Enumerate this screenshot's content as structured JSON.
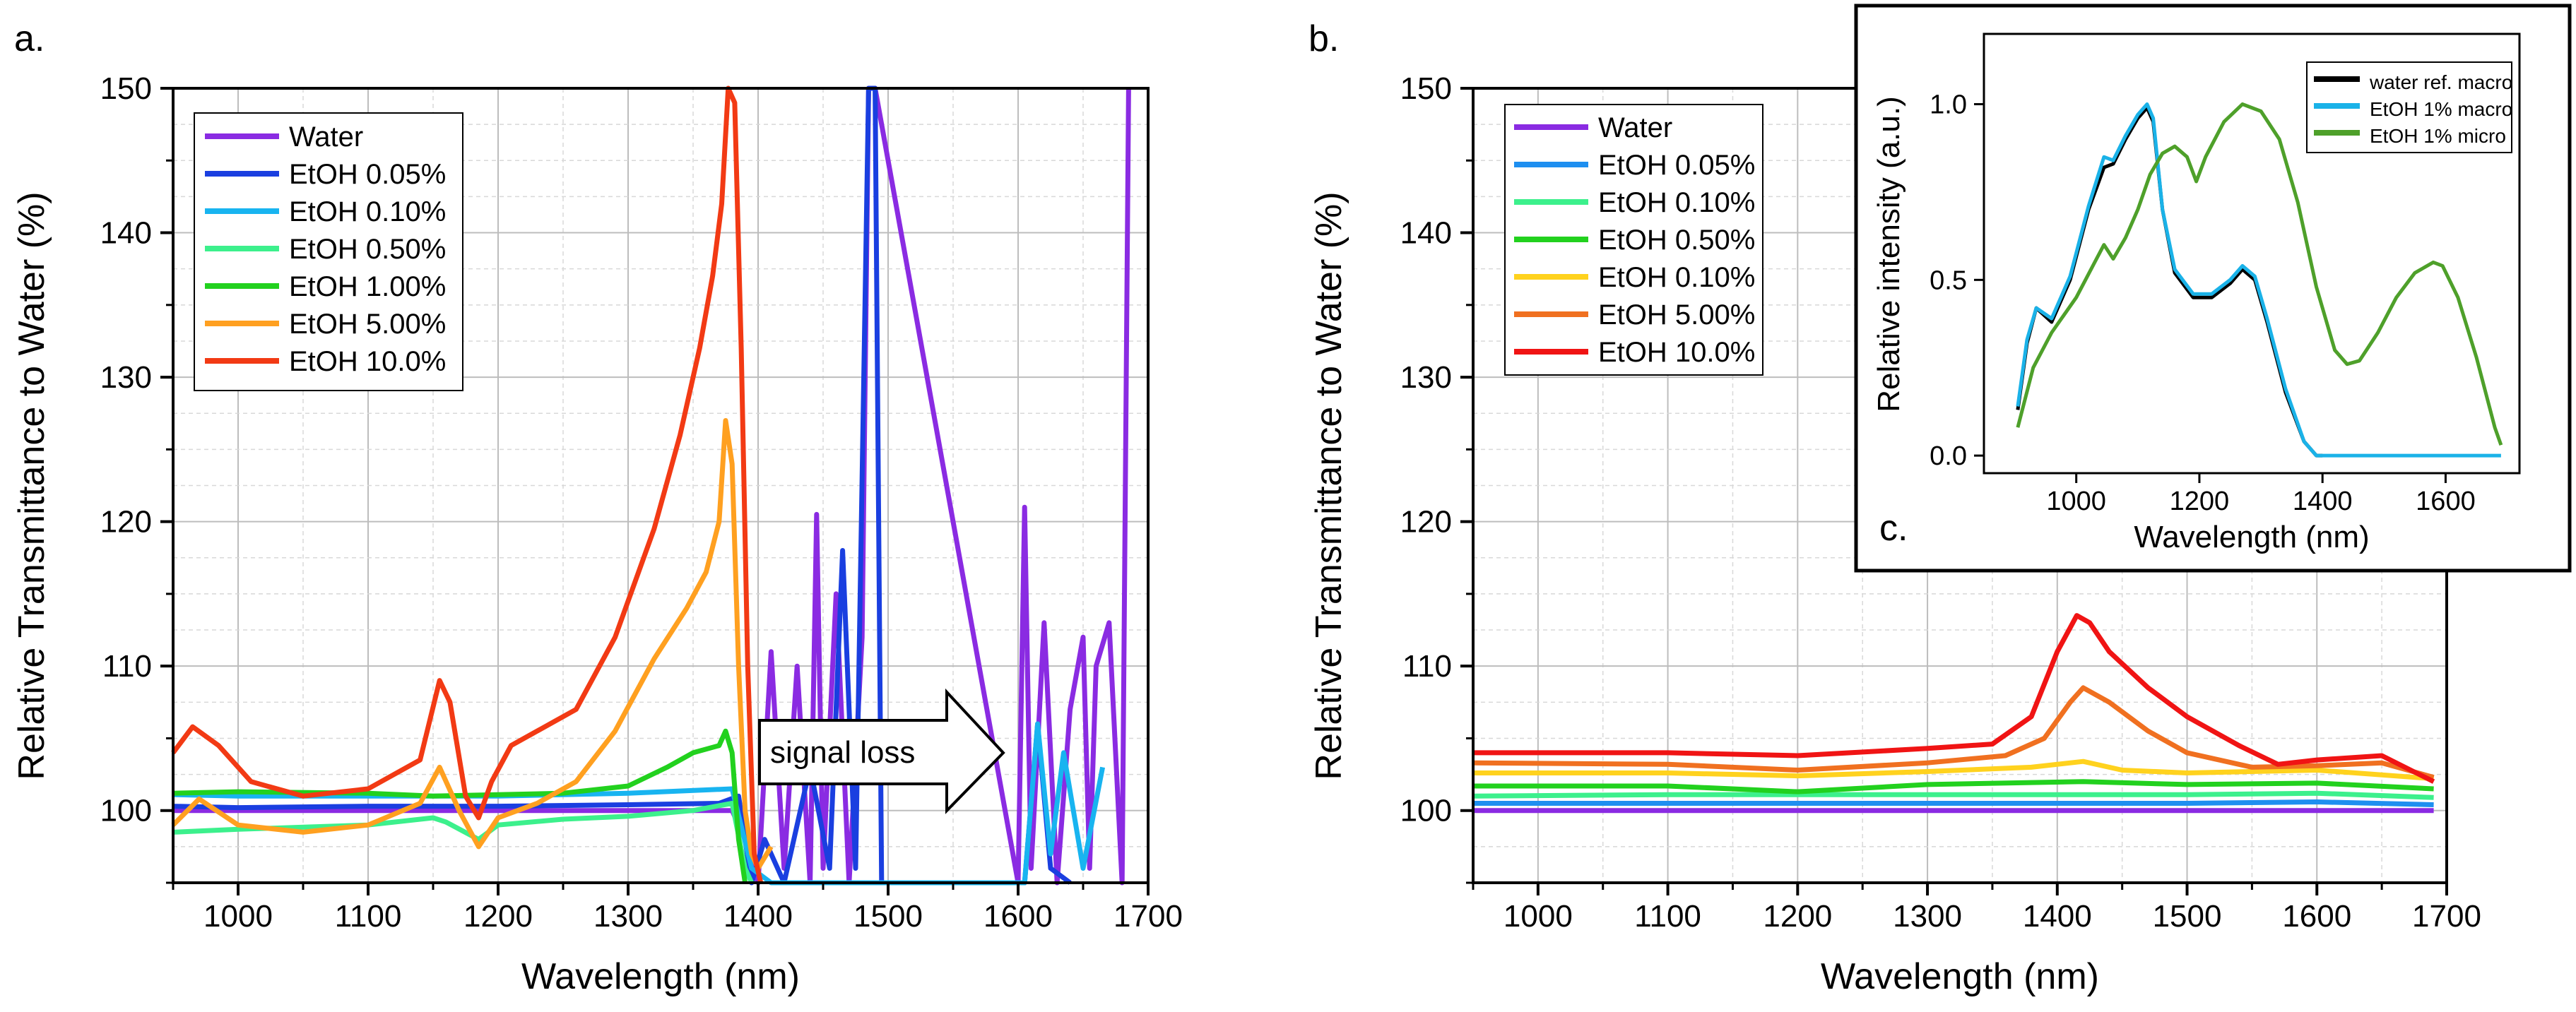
{
  "panels": [
    {
      "label": "a.",
      "xlabel": "Wavelength (nm)",
      "ylabel": "Relative Transmittance to Water (%)",
      "xlim": [
        950,
        1700
      ],
      "ylim": [
        95,
        150
      ],
      "xticks": [
        1000,
        1100,
        1200,
        1300,
        1400,
        1500,
        1600,
        1700
      ],
      "yticks": [
        100,
        110,
        120,
        130,
        140,
        150
      ],
      "annotation": "signal loss"
    },
    {
      "label": "b.",
      "xlabel": "Wavelength (nm)",
      "ylabel": "Relative Transmittance to Water (%)",
      "xlim": [
        950,
        1700
      ],
      "ylim": [
        95,
        150
      ],
      "xticks": [
        1000,
        1100,
        1200,
        1300,
        1400,
        1500,
        1600,
        1700
      ],
      "yticks": [
        100,
        110,
        120,
        130,
        140,
        150
      ]
    },
    {
      "label": "c.",
      "xlabel": "Wavelength (nm)",
      "ylabel": "Relative intensity (a.u.)",
      "xlim": [
        850,
        1720
      ],
      "ylim": [
        -0.05,
        1.2
      ],
      "xticks": [
        1000,
        1200,
        1400,
        1600
      ],
      "yticks": [
        "0.0",
        "0.5",
        "1.0"
      ],
      "ytick_values": [
        0,
        0.5,
        1.0
      ]
    }
  ],
  "chart_data": [
    {
      "type": "line",
      "title": "a.",
      "xlabel": "Wavelength (nm)",
      "ylabel": "Relative Transmittance to Water (%)",
      "xlim": [
        950,
        1700
      ],
      "ylim": [
        95,
        150
      ],
      "grid": true,
      "legend_position": "top-left",
      "series": [
        {
          "name": "Water",
          "color": "#8a2be2",
          "x": [
            950,
            1000,
            1100,
            1200,
            1300,
            1370,
            1380,
            1390,
            1400,
            1410,
            1420,
            1430,
            1440,
            1445,
            1450,
            1460,
            1470,
            1480,
            1485,
            1490,
            1600,
            1605,
            1610,
            1620,
            1630,
            1640,
            1650,
            1655,
            1660,
            1670,
            1680,
            1685
          ],
          "y": [
            100,
            100,
            100,
            100,
            100,
            100,
            100,
            98,
            95,
            111,
            96,
            110,
            95,
            120.5,
            96,
            115,
            95,
            112,
            150,
            150,
            95,
            121,
            96,
            113,
            95,
            107,
            112,
            96,
            110,
            113,
            95,
            150
          ]
        },
        {
          "name": "EtOH 0.05%",
          "color": "#1a3fe0",
          "x": [
            950,
            1000,
            1100,
            1200,
            1300,
            1370,
            1385,
            1395,
            1405,
            1420,
            1440,
            1455,
            1465,
            1475,
            1485,
            1490,
            1495,
            1605,
            1615,
            1625,
            1640
          ],
          "y": [
            100.3,
            100.2,
            100.3,
            100.3,
            100.4,
            100.5,
            101,
            95,
            98,
            95,
            103,
            96,
            118,
            96,
            150,
            150,
            95,
            95,
            106,
            96,
            95
          ]
        },
        {
          "name": "EtOH 0.10%",
          "color": "#18b4f0",
          "x": [
            950,
            1000,
            1100,
            1200,
            1300,
            1380,
            1395,
            1410,
            1430,
            1605,
            1615,
            1625,
            1635,
            1650,
            1665
          ],
          "y": [
            101.1,
            101.0,
            101.0,
            101.0,
            101.2,
            101.5,
            96,
            95,
            95,
            95,
            106,
            97,
            104,
            96,
            103
          ]
        },
        {
          "name": "EtOH 0.50%",
          "color": "#3cf08c",
          "x": [
            950,
            1000,
            1100,
            1150,
            1160,
            1185,
            1200,
            1250,
            1300,
            1350,
            1380,
            1390,
            1395
          ],
          "y": [
            98.5,
            98.7,
            99.0,
            99.5,
            99.2,
            98.0,
            99.0,
            99.4,
            99.6,
            100.0,
            100.5,
            96,
            95
          ]
        },
        {
          "name": "EtOH 1.00%",
          "color": "#22d11e",
          "x": [
            950,
            1000,
            1100,
            1150,
            1200,
            1250,
            1300,
            1330,
            1350,
            1370,
            1375,
            1380,
            1385,
            1390
          ],
          "y": [
            101.2,
            101.3,
            101.2,
            101.0,
            101.1,
            101.2,
            101.7,
            103.0,
            104.0,
            104.5,
            105.5,
            104,
            98,
            95
          ]
        },
        {
          "name": "EtOH 5.00%",
          "color": "#ffa020",
          "x": [
            950,
            970,
            1000,
            1050,
            1100,
            1140,
            1155,
            1170,
            1185,
            1200,
            1230,
            1260,
            1290,
            1320,
            1345,
            1360,
            1370,
            1375,
            1380,
            1385,
            1390,
            1395,
            1400,
            1410
          ],
          "y": [
            99,
            100.8,
            99.0,
            98.5,
            99.0,
            100.5,
            103.0,
            100.0,
            97.5,
            99.5,
            100.5,
            102.0,
            105.5,
            110.5,
            114.0,
            116.5,
            120.0,
            127.0,
            124.0,
            110.0,
            100.0,
            97.0,
            96.0,
            97.5
          ]
        },
        {
          "name": "EtOH 10.0%",
          "color": "#f23a14",
          "x": [
            950,
            965,
            985,
            1010,
            1050,
            1100,
            1140,
            1155,
            1163,
            1175,
            1185,
            1195,
            1210,
            1230,
            1260,
            1290,
            1320,
            1340,
            1355,
            1365,
            1372,
            1377,
            1382,
            1387,
            1392,
            1397,
            1402
          ],
          "y": [
            104,
            105.8,
            104.5,
            102,
            101,
            101.5,
            103.5,
            109.0,
            107.5,
            101.0,
            99.5,
            102.0,
            104.5,
            105.5,
            107.0,
            112.0,
            119.5,
            126.0,
            132.0,
            137.0,
            142.0,
            150.0,
            149.0,
            132.0,
            110.0,
            97.0,
            95.0
          ]
        }
      ]
    },
    {
      "type": "line",
      "title": "b.",
      "xlabel": "Wavelength (nm)",
      "ylabel": "Relative Transmittance to Water (%)",
      "xlim": [
        950,
        1700
      ],
      "ylim": [
        95,
        150
      ],
      "grid": true,
      "legend_position": "top-left",
      "series": [
        {
          "name": "Water",
          "color": "#8a2be2",
          "x": [
            950,
            1100,
            1300,
            1500,
            1600,
            1690
          ],
          "y": [
            100.0,
            100.0,
            100.0,
            100.0,
            100.0,
            100.0
          ]
        },
        {
          "name": "EtOH 0.05%",
          "color": "#1e8ff0",
          "x": [
            950,
            1100,
            1300,
            1500,
            1600,
            1690
          ],
          "y": [
            100.5,
            100.5,
            100.5,
            100.5,
            100.6,
            100.4
          ]
        },
        {
          "name": "EtOH 0.10%",
          "color": "#3cf08c",
          "x": [
            950,
            1100,
            1300,
            1500,
            1600,
            1690
          ],
          "y": [
            101.0,
            101.1,
            101.1,
            101.1,
            101.2,
            100.9
          ]
        },
        {
          "name": "EtOH 0.50%",
          "color": "#22d11e",
          "x": [
            950,
            1100,
            1200,
            1300,
            1420,
            1500,
            1600,
            1690
          ],
          "y": [
            101.7,
            101.7,
            101.3,
            101.8,
            102.0,
            101.8,
            101.9,
            101.5
          ]
        },
        {
          "name": "EtOH 0.10%",
          "color": "#ffd21e",
          "x": [
            950,
            1100,
            1200,
            1300,
            1380,
            1420,
            1450,
            1500,
            1600,
            1690
          ],
          "y": [
            102.6,
            102.6,
            102.4,
            102.7,
            103.0,
            103.4,
            102.8,
            102.6,
            102.8,
            102.2
          ]
        },
        {
          "name": "EtOH 5.00%",
          "color": "#f07020",
          "x": [
            950,
            1100,
            1200,
            1300,
            1360,
            1390,
            1410,
            1420,
            1440,
            1470,
            1500,
            1550,
            1600,
            1650,
            1690
          ],
          "y": [
            103.3,
            103.2,
            102.8,
            103.3,
            103.8,
            105.0,
            107.5,
            108.5,
            107.5,
            105.5,
            104.0,
            103.0,
            103.1,
            103.3,
            102.3
          ]
        },
        {
          "name": "EtOH 10.0%",
          "color": "#f01414",
          "x": [
            950,
            1100,
            1200,
            1300,
            1350,
            1380,
            1400,
            1415,
            1425,
            1440,
            1470,
            1500,
            1540,
            1570,
            1600,
            1650,
            1690
          ],
          "y": [
            104.0,
            104.0,
            103.8,
            104.3,
            104.6,
            106.5,
            111.0,
            113.5,
            113.0,
            111.0,
            108.5,
            106.5,
            104.5,
            103.2,
            103.5,
            103.8,
            102.0
          ]
        }
      ]
    },
    {
      "type": "line",
      "title": "c.",
      "xlabel": "Wavelength (nm)",
      "ylabel": "Relative intensity (a.u.)",
      "xlim": [
        850,
        1720
      ],
      "ylim": [
        -0.05,
        1.2
      ],
      "grid": false,
      "legend_position": "top-right",
      "series": [
        {
          "name": "water ref. macro",
          "color": "#000000",
          "x": [
            905,
            920,
            935,
            960,
            990,
            1020,
            1045,
            1060,
            1080,
            1100,
            1115,
            1125,
            1140,
            1160,
            1190,
            1220,
            1250,
            1270,
            1290,
            1310,
            1340,
            1370,
            1390,
            1400
          ],
          "y": [
            0.13,
            0.32,
            0.42,
            0.38,
            0.5,
            0.7,
            0.82,
            0.83,
            0.9,
            0.96,
            0.99,
            0.95,
            0.7,
            0.52,
            0.45,
            0.45,
            0.49,
            0.53,
            0.5,
            0.38,
            0.18,
            0.04,
            0.0,
            0.0
          ]
        },
        {
          "name": "EtOH 1% macro",
          "color": "#1ab2e8",
          "x": [
            905,
            920,
            935,
            960,
            990,
            1020,
            1045,
            1060,
            1080,
            1100,
            1115,
            1125,
            1140,
            1160,
            1190,
            1220,
            1250,
            1270,
            1290,
            1310,
            1340,
            1370,
            1390,
            1400,
            1500,
            1600,
            1690
          ],
          "y": [
            0.14,
            0.33,
            0.42,
            0.39,
            0.51,
            0.71,
            0.85,
            0.84,
            0.91,
            0.97,
            1.0,
            0.96,
            0.7,
            0.53,
            0.46,
            0.46,
            0.5,
            0.54,
            0.51,
            0.39,
            0.19,
            0.04,
            0.0,
            0.0,
            0.0,
            0.0,
            0.0
          ]
        },
        {
          "name": "EtOH 1% micro",
          "color": "#4ea02a",
          "x": [
            905,
            930,
            960,
            1000,
            1030,
            1045,
            1060,
            1080,
            1100,
            1120,
            1140,
            1160,
            1180,
            1195,
            1210,
            1240,
            1270,
            1300,
            1330,
            1360,
            1390,
            1420,
            1440,
            1460,
            1490,
            1520,
            1550,
            1580,
            1595,
            1620,
            1650,
            1680,
            1690
          ],
          "y": [
            0.08,
            0.25,
            0.35,
            0.45,
            0.55,
            0.6,
            0.56,
            0.62,
            0.7,
            0.8,
            0.86,
            0.88,
            0.85,
            0.78,
            0.85,
            0.95,
            1.0,
            0.98,
            0.9,
            0.72,
            0.48,
            0.3,
            0.26,
            0.27,
            0.35,
            0.45,
            0.52,
            0.55,
            0.54,
            0.45,
            0.28,
            0.08,
            0.03
          ]
        }
      ]
    }
  ],
  "legend_a": [
    "Water",
    "EtOH 0.05%",
    "EtOH 0.10%",
    "EtOH 0.50%",
    "EtOH 1.00%",
    "EtOH 5.00%",
    "EtOH 10.0%"
  ],
  "legend_b": [
    "Water",
    "EtOH 0.05%",
    "EtOH 0.10%",
    "EtOH 0.50%",
    "EtOH 0.10%",
    "EtOH 5.00%",
    "EtOH 10.0%"
  ],
  "legend_c": [
    "water ref. macro",
    "EtOH 1% macro",
    "EtOH 1% micro"
  ]
}
